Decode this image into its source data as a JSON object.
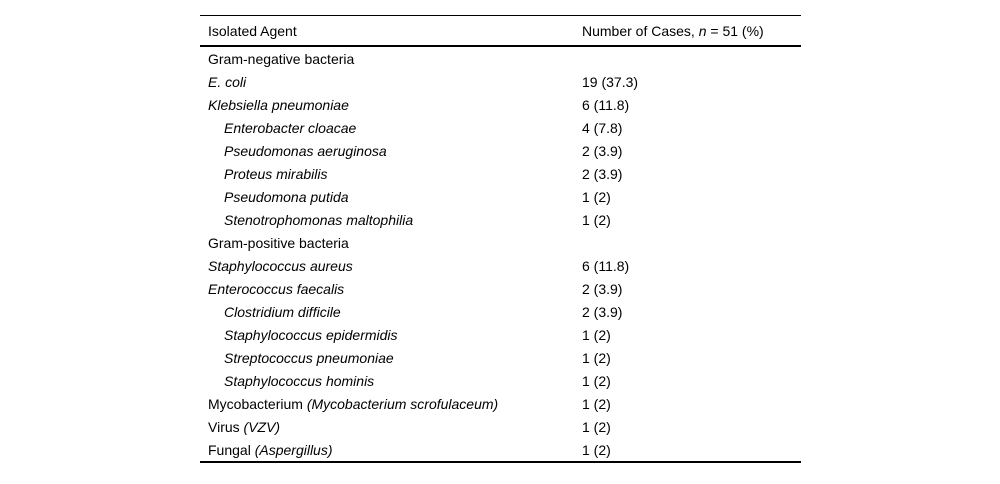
{
  "table": {
    "header": {
      "col1": "Isolated Agent",
      "col2_prefix": "Number of Cases, ",
      "col2_n": "n",
      "col2_suffix": " = 51 (%)"
    },
    "rows": [
      {
        "label_plain": "Gram-negative bacteria",
        "label_italic": "",
        "value": ""
      },
      {
        "label_plain": "",
        "label_italic": "E. coli",
        "value": "19 (37.3)"
      },
      {
        "label_plain": "",
        "label_italic": "Klebsiella pneumoniae",
        "value": "6 (11.8)"
      },
      {
        "label_plain": "",
        "label_italic": "Enterobacter cloacae",
        "value": "4 (7.8)"
      },
      {
        "label_plain": "",
        "label_italic": "Pseudomonas aeruginosa",
        "value": "2 (3.9)"
      },
      {
        "label_plain": "",
        "label_italic": "Proteus mirabilis",
        "value": "2 (3.9)"
      },
      {
        "label_plain": "",
        "label_italic": "Pseudomona putida",
        "value": "1 (2)"
      },
      {
        "label_plain": "",
        "label_italic": "Stenotrophomonas maltophilia",
        "value": "1 (2)"
      },
      {
        "label_plain": "Gram-positive bacteria",
        "label_italic": "",
        "value": ""
      },
      {
        "label_plain": "",
        "label_italic": "Staphylococcus aureus",
        "value": "6 (11.8)"
      },
      {
        "label_plain": "",
        "label_italic": "Enterococcus faecalis",
        "value": "2 (3.9)"
      },
      {
        "label_plain": "",
        "label_italic": "Clostridium difficile",
        "value": "2 (3.9)"
      },
      {
        "label_plain": "",
        "label_italic": "Staphylococcus epidermidis",
        "value": "1 (2)"
      },
      {
        "label_plain": "",
        "label_italic": "Streptococcus pneumoniae",
        "value": "1 (2)"
      },
      {
        "label_plain": "",
        "label_italic": "Staphylococcus hominis",
        "value": "1 (2)"
      },
      {
        "label_plain": "Mycobacterium ",
        "label_italic": "(Mycobacterium scrofulaceum)",
        "value": "1 (2)"
      },
      {
        "label_plain": "Virus ",
        "label_italic": "(VZV)",
        "value": "1 (2)"
      },
      {
        "label_plain": "Fungal ",
        "label_italic": "(Aspergillus)",
        "value": "1 (2)"
      }
    ]
  }
}
